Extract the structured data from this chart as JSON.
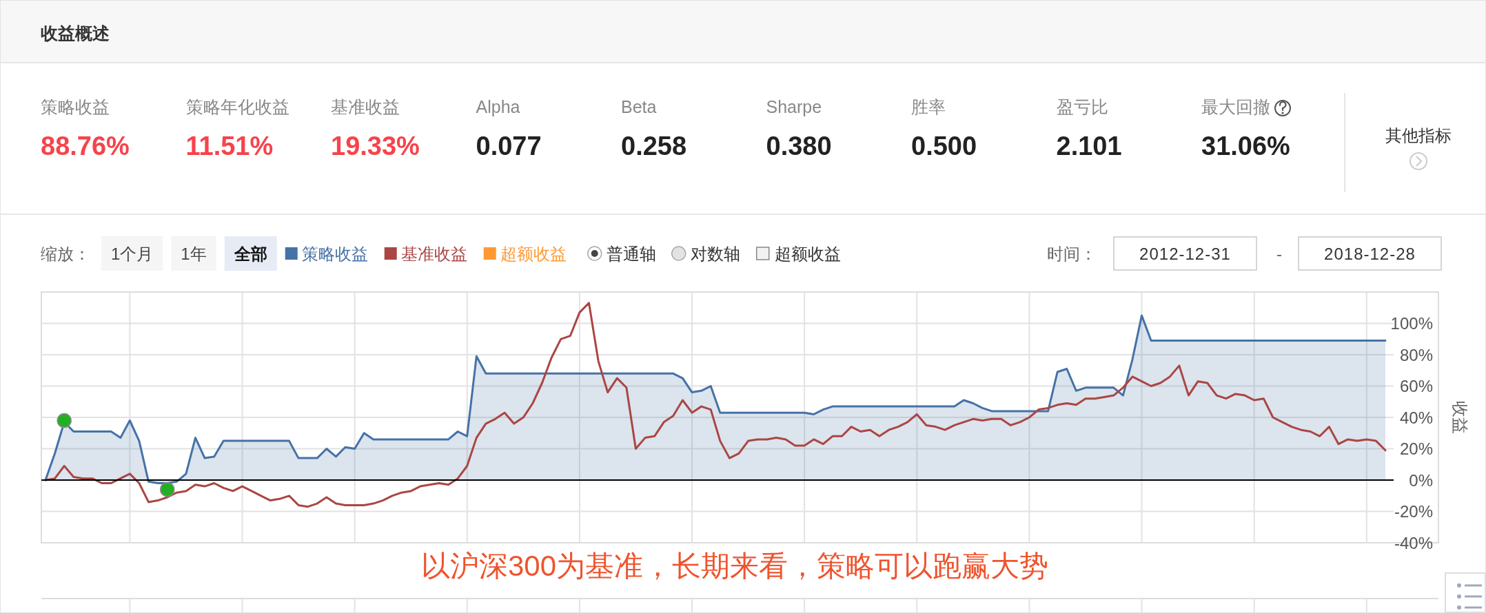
{
  "chart_data": [
    {
      "type": "other",
      "title": "收益概述",
      "annotations": [
        "策略收益",
        "88.76%",
        "策略年化收益",
        "11.51%",
        "基准收益",
        "19.33%",
        "Alpha",
        "0.077",
        "Beta",
        "0.258",
        "Sharpe",
        "0.380",
        "胜率",
        "0.500",
        "盈亏比",
        "2.101",
        "最大回撤",
        "31.06%",
        "其他指标"
      ]
    },
    {
      "type": "area",
      "ylabel": "收益",
      "ylim": [
        -40,
        120
      ],
      "yticks": [
        {
          "value": -40,
          "label": "-40%"
        },
        {
          "value": -20,
          "label": "-20%"
        },
        {
          "value": 0,
          "label": "0%"
        },
        {
          "value": 20,
          "label": "20%"
        },
        {
          "value": 40,
          "label": "40%"
        },
        {
          "value": 60,
          "label": "60%"
        },
        {
          "value": 80,
          "label": "80%"
        },
        {
          "value": 100,
          "label": "100%"
        },
        {
          "value": 120,
          "label": null
        }
      ],
      "grid": true,
      "legend": "top left",
      "ref_lines": [
        {
          "axis": "y",
          "value": 0,
          "color": "#000000"
        }
      ],
      "annotations": [
        "缩放：",
        "1个月",
        "1年",
        "全部",
        "普通轴",
        "对数轴",
        "超额收益",
        "时间：",
        "2012-12-31",
        "-",
        "2018-12-28",
        "以沪深300为基准，长期来看，策略可以跑赢大势"
      ],
      "categories": [
        null,
        null,
        null,
        null,
        null,
        null,
        null,
        null,
        null,
        null,
        null,
        null,
        null,
        null,
        null,
        null,
        null,
        null,
        null,
        null,
        null,
        null,
        null,
        null,
        null,
        null,
        null,
        null,
        null,
        null,
        null,
        null,
        null,
        null,
        null,
        null,
        null,
        null,
        null,
        null,
        null,
        null,
        null,
        null,
        null,
        null,
        null,
        null,
        null,
        null,
        null,
        null,
        null,
        null,
        null,
        null,
        null,
        null,
        null,
        null,
        null,
        null,
        null,
        null,
        null,
        null,
        null,
        null,
        null,
        null,
        null,
        null,
        null,
        null,
        null,
        null,
        null,
        null,
        null,
        null,
        null,
        null,
        null,
        null,
        null,
        null,
        null,
        null,
        null,
        null,
        null,
        null,
        null,
        null,
        null,
        null,
        null,
        null,
        null,
        null,
        null,
        null,
        null,
        null,
        null,
        null,
        null,
        null,
        null,
        null,
        null,
        null,
        null,
        null,
        null,
        null,
        null,
        null,
        null,
        null,
        null,
        null,
        null,
        null,
        null,
        null,
        null,
        null,
        null,
        null,
        null,
        null,
        null,
        null,
        null,
        null,
        null,
        null,
        null,
        null,
        null,
        null,
        null,
        null
      ],
      "series": [
        {
          "name": "策略收益",
          "type": "area",
          "color": "#4572a7",
          "values": [
            0,
            17,
            37,
            31,
            31,
            31,
            31,
            31,
            27,
            38,
            25,
            -1,
            -2,
            -2,
            -1,
            4,
            27,
            14,
            15,
            25,
            25,
            25,
            25,
            25,
            25,
            25,
            25,
            14,
            14,
            14,
            20,
            15,
            21,
            20,
            30,
            26,
            26,
            26,
            26,
            26,
            26,
            26,
            26,
            26,
            31,
            28,
            79,
            68,
            68,
            68,
            68,
            68,
            68,
            68,
            68,
            68,
            68,
            68,
            68,
            68,
            68,
            68,
            68,
            68,
            68,
            68,
            68,
            68,
            65,
            56,
            57,
            60,
            43,
            43,
            43,
            43,
            43,
            43,
            43,
            43,
            43,
            43,
            42,
            45,
            47,
            47,
            47,
            47,
            47,
            47,
            47,
            47,
            47,
            47,
            47,
            47,
            47,
            47,
            51,
            49,
            46,
            44,
            44,
            44,
            44,
            44,
            44,
            44,
            69,
            71,
            57,
            59,
            59,
            59,
            59,
            54,
            77,
            105,
            89,
            89,
            89,
            89,
            89,
            89,
            89,
            89,
            89,
            89,
            89,
            89,
            89,
            89,
            89,
            89,
            89,
            89,
            89,
            89,
            89,
            89,
            89,
            89,
            89,
            89
          ]
        },
        {
          "name": "基准收益",
          "type": "line",
          "color": "#aa4643",
          "values": [
            0,
            1,
            9,
            2,
            1,
            1,
            -2,
            -2,
            1,
            4,
            -2,
            -14,
            -13,
            -11,
            -8,
            -7,
            -3,
            -4,
            -2,
            -5,
            -7,
            -4,
            -7,
            -10,
            -13,
            -12,
            -10,
            -16,
            -17,
            -15,
            -11,
            -15,
            -16,
            -16,
            -16,
            -15,
            -13,
            -10,
            -8,
            -7,
            -4,
            -3,
            -2,
            -3,
            1,
            9,
            27,
            36,
            39,
            43,
            36,
            40,
            49,
            62,
            78,
            90,
            92,
            107,
            113,
            76,
            56,
            65,
            59,
            20,
            27,
            28,
            37,
            41,
            51,
            43,
            47,
            45,
            25,
            14,
            17,
            25,
            26,
            26,
            27,
            26,
            22,
            22,
            26,
            23,
            28,
            28,
            34,
            31,
            32,
            28,
            32,
            34,
            37,
            42,
            35,
            34,
            32,
            35,
            37,
            39,
            38,
            39,
            39,
            35,
            37,
            40,
            45,
            46,
            48,
            49,
            48,
            52,
            52,
            53,
            54,
            59,
            66,
            63,
            60,
            62,
            66,
            73,
            54,
            63,
            62,
            54,
            52,
            55,
            54,
            51,
            52,
            40,
            37,
            34,
            32,
            31,
            28,
            34,
            23,
            26,
            25,
            26,
            25,
            19
          ]
        },
        {
          "name": "超额收益",
          "type": "line",
          "color": "#ff9933",
          "values": [
            null,
            null,
            null,
            null,
            null,
            null,
            null,
            null,
            null,
            null,
            null,
            null,
            null,
            null,
            null,
            null,
            null,
            null,
            null,
            null,
            null,
            null,
            null,
            null,
            null,
            null,
            null,
            null,
            null,
            null,
            null,
            null,
            null,
            null,
            null,
            null,
            null,
            null,
            null,
            null,
            null,
            null,
            null,
            null,
            null,
            null,
            null,
            null,
            null,
            null,
            null,
            null,
            null,
            null,
            null,
            null,
            null,
            null,
            null,
            null,
            null,
            null,
            null,
            null,
            null,
            null,
            null,
            null,
            null,
            null,
            null,
            null,
            null,
            null,
            null,
            null,
            null,
            null,
            null,
            null,
            null,
            null,
            null,
            null,
            null,
            null,
            null,
            null,
            null,
            null,
            null,
            null,
            null,
            null,
            null,
            null,
            null,
            null,
            null,
            null,
            null,
            null,
            null,
            null,
            null,
            null,
            null,
            null,
            null,
            null,
            null,
            null,
            null,
            null,
            null,
            null,
            null,
            null,
            null,
            null,
            null,
            null,
            null,
            null,
            null,
            null,
            null,
            null,
            null,
            null,
            null,
            null,
            null,
            null,
            null,
            null,
            null,
            null,
            null,
            null,
            null,
            null,
            null,
            null
          ]
        },
        {
          "type": "scatter",
          "color": "#22b022",
          "marker": "circle",
          "values": [
            null,
            null,
            38,
            null,
            null,
            null,
            null,
            null,
            null,
            null,
            null,
            null,
            null,
            -6,
            null,
            null,
            null,
            null,
            null,
            null,
            null,
            null,
            null,
            null,
            null,
            null,
            null,
            null,
            null,
            null,
            null,
            null,
            null,
            null,
            null,
            null,
            null,
            null,
            null,
            null,
            null,
            null,
            null,
            null,
            null,
            null,
            null,
            null,
            null,
            null,
            null,
            null,
            null,
            null,
            null,
            null,
            null,
            null,
            null,
            null,
            null,
            null,
            null,
            null,
            null,
            null,
            null,
            null,
            null,
            null,
            null,
            null,
            null,
            null,
            null,
            null,
            null,
            null,
            null,
            null,
            null,
            null,
            null,
            null,
            null,
            null,
            null,
            null,
            null,
            null,
            null,
            null,
            null,
            null,
            null,
            null,
            null,
            null,
            null,
            null,
            null,
            null,
            null,
            null,
            null,
            null,
            null,
            null,
            null,
            null,
            null,
            null,
            null,
            null,
            null,
            null,
            null,
            null,
            null,
            null,
            null,
            null,
            null,
            null,
            null,
            null,
            null,
            null,
            null,
            null,
            null,
            null,
            null,
            null,
            null,
            null,
            null,
            null,
            null,
            null,
            null,
            null,
            null,
            null
          ]
        }
      ]
    }
  ]
}
